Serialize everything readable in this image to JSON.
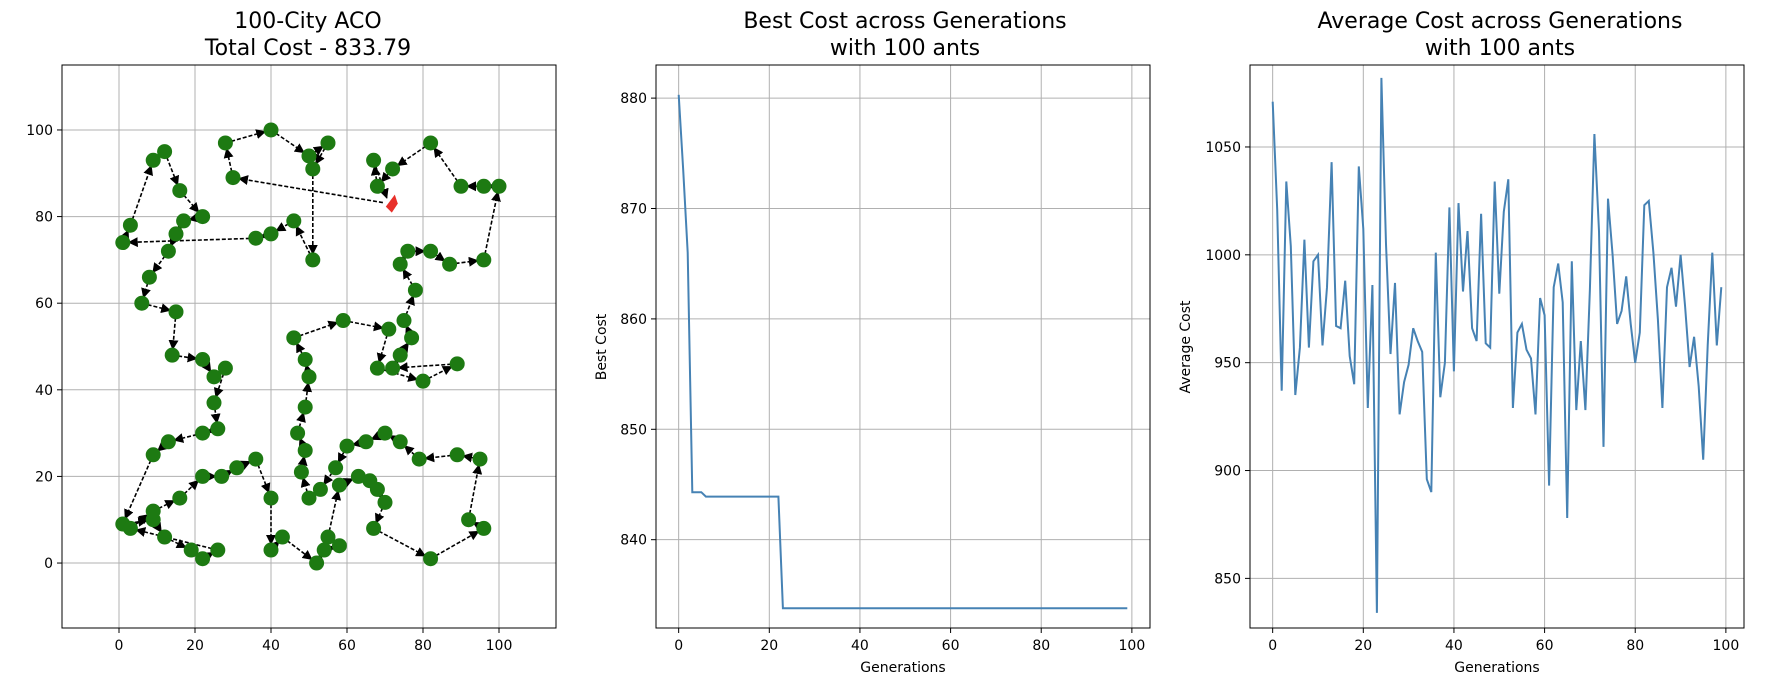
{
  "chart_data": [
    {
      "type": "scatter",
      "title_lines": [
        "100-City ACO",
        "Total Cost - 833.79"
      ],
      "xlabel": "",
      "ylabel": "",
      "xlim": [
        -15,
        115
      ],
      "ylim": [
        -15,
        115
      ],
      "xticks": [
        0,
        20,
        40,
        60,
        80,
        100
      ],
      "yticks": [
        0,
        20,
        40,
        60,
        80,
        100
      ],
      "grid": true,
      "start_city": [
        71,
        83
      ],
      "start_color": "#e8302a",
      "city_color": "#1d7a12",
      "tour": [
        [
          71,
          83
        ],
        [
          30,
          89
        ],
        [
          28,
          97
        ],
        [
          40,
          100
        ],
        [
          50,
          94
        ],
        [
          55,
          97
        ],
        [
          51,
          91
        ],
        [
          51,
          70
        ],
        [
          46,
          79
        ],
        [
          40,
          76
        ],
        [
          36,
          75
        ],
        [
          1,
          74
        ],
        [
          3,
          78
        ],
        [
          9,
          93
        ],
        [
          12,
          95
        ],
        [
          16,
          86
        ],
        [
          22,
          80
        ],
        [
          17,
          79
        ],
        [
          15,
          76
        ],
        [
          13,
          72
        ],
        [
          8,
          66
        ],
        [
          6,
          60
        ],
        [
          15,
          58
        ],
        [
          14,
          48
        ],
        [
          22,
          47
        ],
        [
          25,
          43
        ],
        [
          28,
          45
        ],
        [
          25,
          37
        ],
        [
          26,
          31
        ],
        [
          22,
          30
        ],
        [
          13,
          28
        ],
        [
          9,
          25
        ],
        [
          1,
          9
        ],
        [
          9,
          10
        ],
        [
          12,
          6
        ],
        [
          19,
          3
        ],
        [
          22,
          1
        ],
        [
          26,
          3
        ],
        [
          3,
          8
        ],
        [
          9,
          12
        ],
        [
          16,
          15
        ],
        [
          22,
          20
        ],
        [
          27,
          20
        ],
        [
          31,
          22
        ],
        [
          36,
          24
        ],
        [
          40,
          15
        ],
        [
          40,
          3
        ],
        [
          43,
          6
        ],
        [
          52,
          0
        ],
        [
          54,
          3
        ],
        [
          58,
          4
        ],
        [
          55,
          6
        ],
        [
          58,
          18
        ],
        [
          63,
          20
        ],
        [
          66,
          19
        ],
        [
          68,
          17
        ],
        [
          70,
          14
        ],
        [
          67,
          8
        ],
        [
          82,
          1
        ],
        [
          96,
          8
        ],
        [
          92,
          10
        ],
        [
          95,
          24
        ],
        [
          89,
          25
        ],
        [
          79,
          24
        ],
        [
          74,
          28
        ],
        [
          70,
          30
        ],
        [
          65,
          28
        ],
        [
          60,
          27
        ],
        [
          57,
          22
        ],
        [
          53,
          17
        ],
        [
          50,
          15
        ],
        [
          48,
          21
        ],
        [
          49,
          26
        ],
        [
          47,
          30
        ],
        [
          49,
          36
        ],
        [
          50,
          43
        ],
        [
          49,
          47
        ],
        [
          46,
          52
        ],
        [
          59,
          56
        ],
        [
          71,
          54
        ],
        [
          68,
          45
        ],
        [
          80,
          42
        ],
        [
          89,
          46
        ],
        [
          72,
          45
        ],
        [
          74,
          48
        ],
        [
          77,
          52
        ],
        [
          75,
          56
        ],
        [
          78,
          63
        ],
        [
          74,
          69
        ],
        [
          76,
          72
        ],
        [
          82,
          72
        ],
        [
          87,
          69
        ],
        [
          96,
          70
        ],
        [
          100,
          87
        ],
        [
          96,
          87
        ],
        [
          90,
          87
        ],
        [
          82,
          97
        ],
        [
          72,
          91
        ],
        [
          68,
          87
        ],
        [
          67,
          93
        ],
        [
          71,
          83
        ]
      ]
    },
    {
      "type": "line",
      "title_lines": [
        "Best Cost across Generations",
        "with 100 ants"
      ],
      "xlabel": "Generations",
      "ylabel": "Best Cost",
      "xlim": [
        -5,
        104
      ],
      "ylim": [
        832,
        883
      ],
      "xticks": [
        0,
        20,
        40,
        60,
        80,
        100
      ],
      "yticks": [
        840,
        850,
        860,
        870,
        880
      ],
      "grid": true,
      "series": [
        {
          "x": [
            0,
            1,
            2,
            3,
            4,
            5,
            6,
            22,
            23,
            99
          ],
          "y": [
            880.3,
            873.5,
            866.0,
            844.3,
            844.3,
            844.3,
            843.9,
            843.9,
            833.79,
            833.79
          ]
        }
      ]
    },
    {
      "type": "line",
      "title_lines": [
        "Average Cost across Generations",
        "with 100 ants"
      ],
      "xlabel": "Generations",
      "ylabel": "Average Cost",
      "xlim": [
        -5,
        104
      ],
      "ylim": [
        827,
        1088
      ],
      "xticks": [
        0,
        20,
        40,
        60,
        80,
        100
      ],
      "yticks": [
        850,
        900,
        950,
        1000,
        1050
      ],
      "grid": true,
      "series": [
        {
          "x_start": 0,
          "y": [
            1071,
            1021,
            937,
            1034,
            1004,
            935,
            957,
            1007,
            957,
            997,
            1000,
            958,
            985,
            1043,
            967,
            966,
            988,
            953,
            940,
            1041,
            1012,
            929,
            986,
            834,
            1082,
            1005,
            954,
            987,
            926,
            941,
            949,
            966,
            960,
            955,
            896,
            890,
            1001,
            934,
            950,
            1022,
            946,
            1024,
            983,
            1011,
            966,
            960,
            1019,
            959,
            957,
            1034,
            982,
            1020,
            1035,
            929,
            964,
            968,
            956,
            952,
            926,
            980,
            972,
            893,
            985,
            996,
            978,
            878,
            997,
            928,
            960,
            928,
            984,
            1056,
            1011,
            911,
            1026,
            1000,
            968,
            974,
            990,
            968,
            950,
            964,
            1023,
            1025,
            1001,
            970,
            929,
            985,
            994,
            976,
            1000,
            976,
            948,
            962,
            939,
            905,
            958,
            1001,
            958,
            985
          ]
        }
      ]
    }
  ]
}
